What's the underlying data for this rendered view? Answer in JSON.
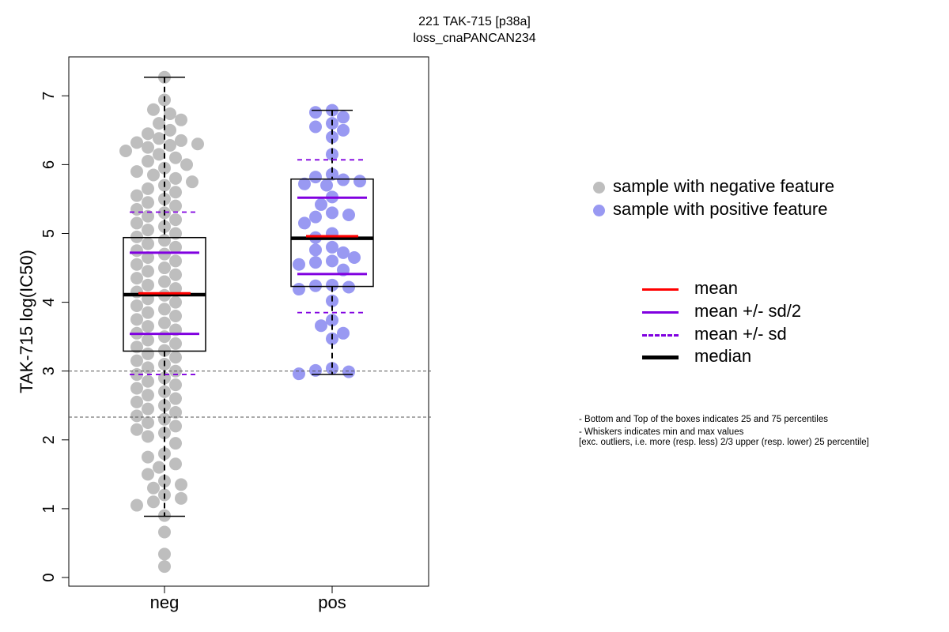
{
  "chart_data": {
    "type": "boxplot",
    "title": "221 TAK-715 [p38a]",
    "subtitle": "loss_cnaPANCAN234",
    "ylabel": "TAK-715 log(IC50)",
    "ylim": [
      -0.1,
      7.6
    ],
    "yticks": [
      "0",
      "1",
      "2",
      "3",
      "4",
      "5",
      "6",
      "7"
    ],
    "categories": [
      "neg",
      "pos"
    ],
    "reference_lines": [
      3.0,
      2.33
    ],
    "groups": [
      {
        "name": "neg",
        "point_color": "#BEBEBE",
        "min": 0.89,
        "q1": 3.29,
        "median": 4.11,
        "q3": 4.94,
        "max": 7.27,
        "mean": 4.13,
        "mean_minus_half_sd": 3.54,
        "mean_plus_half_sd": 4.72,
        "mean_minus_sd": 2.95,
        "mean_plus_sd": 5.31,
        "points": [
          7.27,
          6.94,
          6.8,
          6.74,
          6.65,
          6.6,
          6.5,
          6.45,
          6.38,
          6.35,
          6.32,
          6.3,
          6.28,
          6.25,
          6.2,
          6.15,
          6.1,
          6.05,
          6.0,
          5.95,
          5.9,
          5.85,
          5.8,
          5.75,
          5.7,
          5.65,
          5.6,
          5.55,
          5.5,
          5.45,
          5.4,
          5.35,
          5.3,
          5.25,
          5.2,
          5.15,
          5.1,
          5.05,
          5.0,
          4.95,
          4.9,
          4.85,
          4.8,
          4.75,
          4.7,
          4.65,
          4.6,
          4.55,
          4.5,
          4.45,
          4.4,
          4.35,
          4.3,
          4.25,
          4.2,
          4.15,
          4.1,
          4.05,
          4.0,
          3.95,
          3.9,
          3.85,
          3.8,
          3.75,
          3.7,
          3.65,
          3.6,
          3.55,
          3.5,
          3.45,
          3.4,
          3.35,
          3.3,
          3.25,
          3.2,
          3.15,
          3.1,
          3.05,
          3.0,
          2.95,
          2.9,
          2.85,
          2.8,
          2.75,
          2.7,
          2.65,
          2.6,
          2.55,
          2.5,
          2.45,
          2.4,
          2.35,
          2.3,
          2.25,
          2.2,
          2.15,
          2.1,
          2.05,
          1.95,
          1.8,
          1.75,
          1.65,
          1.6,
          1.5,
          1.4,
          1.35,
          1.3,
          1.2,
          1.15,
          1.1,
          1.05,
          0.9,
          0.66,
          0.34,
          0.16
        ]
      },
      {
        "name": "pos",
        "point_color": "#9999F2",
        "min": 2.95,
        "q1": 4.23,
        "median": 4.93,
        "q3": 5.79,
        "max": 6.79,
        "mean": 4.96,
        "mean_minus_half_sd": 4.41,
        "mean_plus_half_sd": 5.52,
        "mean_minus_sd": 3.85,
        "mean_plus_sd": 6.07,
        "points": [
          6.79,
          6.76,
          6.69,
          6.6,
          6.55,
          6.5,
          6.4,
          6.15,
          5.86,
          5.82,
          5.78,
          5.76,
          5.72,
          5.7,
          5.53,
          5.42,
          5.3,
          5.27,
          5.24,
          5.15,
          5.0,
          4.94,
          4.8,
          4.76,
          4.72,
          4.65,
          4.6,
          4.58,
          4.55,
          4.47,
          4.25,
          4.24,
          4.22,
          4.19,
          4.02,
          3.74,
          3.66,
          3.47,
          3.55,
          3.04,
          3.01,
          2.99,
          2.96
        ]
      }
    ],
    "legend_placement": "right",
    "legend_points": [
      {
        "label": "sample with negative feature",
        "color": "#BEBEBE"
      },
      {
        "label": "sample with positive feature",
        "color": "#9999F2"
      }
    ],
    "legend_lines": [
      {
        "label": "mean",
        "color": "#FF0000",
        "style": "solid"
      },
      {
        "label": "mean +/- sd/2",
        "color": "#8000E0",
        "style": "solid"
      },
      {
        "label": "mean +/- sd",
        "color": "#8000E0",
        "style": "dashed"
      },
      {
        "label": "median",
        "color": "#000000",
        "style": "solid-thick"
      }
    ],
    "notes": [
      "- Bottom and Top of the boxes indicates 25 and 75 percentiles",
      "- Whiskers indicates min and max values",
      "[exc. outliers, i.e. more (resp. less) 2/3 upper (resp. lower) 25 percentile]"
    ]
  }
}
